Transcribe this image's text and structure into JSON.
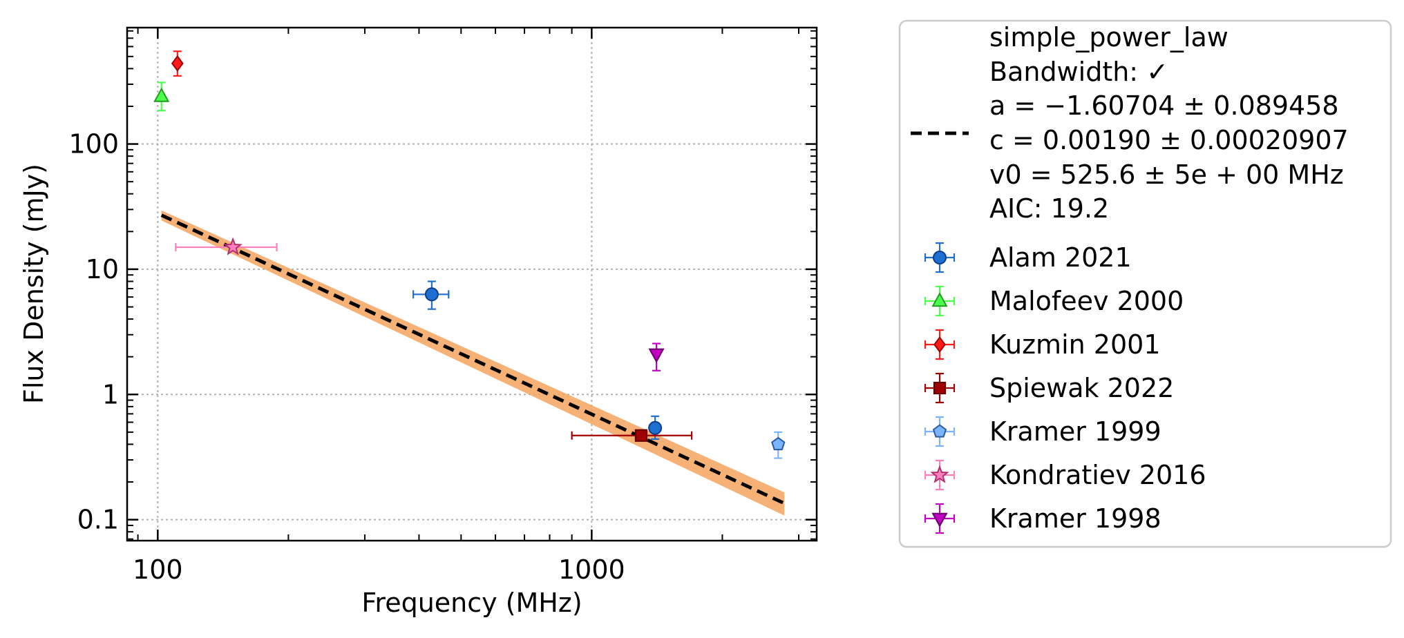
{
  "chart_data": {
    "type": "scatter",
    "xlabel": "Frequency (MHz)",
    "ylabel": "Flux Density (mJy)",
    "xscale": "log",
    "yscale": "log",
    "xlim": [
      85,
      3300
    ],
    "ylim": [
      0.068,
      850
    ],
    "grid": true,
    "legend_position": "right",
    "x_ticks": [
      {
        "value": 100,
        "label": "100"
      },
      {
        "value": 1000,
        "label": "1000"
      }
    ],
    "y_ticks": [
      {
        "value": 0.1,
        "label": "0.1"
      },
      {
        "value": 1,
        "label": "1"
      },
      {
        "value": 10,
        "label": "10"
      },
      {
        "value": 100,
        "label": "100"
      }
    ],
    "fit": {
      "legend_lines": [
        "simple_power_law",
        "Bandwidth: ✓",
        "a = −1.60704 ± 0.089458",
        "c = 0.00190 ± 0.00020907",
        "v0 = 525.6 ± 5e + 00 MHz",
        "AIC: 19.2"
      ],
      "line_color": "#000000",
      "band_color": "#f5a35f",
      "line": [
        [
          102,
          27
        ],
        [
          2780,
          0.135
        ]
      ],
      "band_upper": [
        [
          102,
          29.5
        ],
        [
          2780,
          0.165
        ]
      ],
      "band_lower": [
        [
          102,
          24.5
        ],
        [
          2780,
          0.108
        ]
      ]
    },
    "series": [
      {
        "name": "Alam 2021",
        "marker": "circle",
        "color": "#1f6fd1",
        "edge": "#0b3d8c",
        "points": [
          {
            "x": 428,
            "y": 6.3,
            "xerr": [
              40,
              40
            ],
            "yerr": [
              1.5,
              1.7
            ]
          },
          {
            "x": 1400,
            "y": 0.54,
            "xerr": [
              0,
              0
            ],
            "yerr": [
              0.1,
              0.13
            ]
          }
        ]
      },
      {
        "name": "Malofeev 2000",
        "marker": "triangle-up",
        "color": "#4dff4d",
        "edge": "#1f9a1f",
        "points": [
          {
            "x": 102,
            "y": 240,
            "xerr": [
              0,
              0
            ],
            "yerr": [
              55,
              70
            ]
          }
        ]
      },
      {
        "name": "Kuzmin 2001",
        "marker": "diamond",
        "color": "#ff1a1a",
        "edge": "#a00000",
        "points": [
          {
            "x": 111,
            "y": 440,
            "xerr": [
              0,
              0
            ],
            "yerr": [
              90,
              110
            ]
          }
        ]
      },
      {
        "name": "Spiewak 2022",
        "marker": "square",
        "color": "#a00000",
        "edge": "#600000",
        "points": [
          {
            "x": 1300,
            "y": 0.47,
            "xerr": [
              400,
              400
            ],
            "yerr": [
              0,
              0
            ]
          }
        ]
      },
      {
        "name": "Kramer 1999",
        "marker": "pentagon",
        "color": "#7ab4ff",
        "edge": "#2c5a9a",
        "points": [
          {
            "x": 2690,
            "y": 0.4,
            "xerr": [
              0,
              0
            ],
            "yerr": [
              0.09,
              0.1
            ]
          }
        ]
      },
      {
        "name": "Kondratiev 2016",
        "marker": "star",
        "color": "#ff7fbf",
        "edge": "#b0306e",
        "points": [
          {
            "x": 149,
            "y": 15,
            "xerr": [
              39,
              39
            ],
            "yerr": [
              0,
              0
            ]
          }
        ]
      },
      {
        "name": "Kramer 1998",
        "marker": "triangle-down",
        "color": "#c200c2",
        "edge": "#6a006a",
        "points": [
          {
            "x": 1410,
            "y": 2.1,
            "xerr": [
              0,
              0
            ],
            "yerr": [
              0.55,
              0.45
            ]
          }
        ]
      }
    ]
  }
}
